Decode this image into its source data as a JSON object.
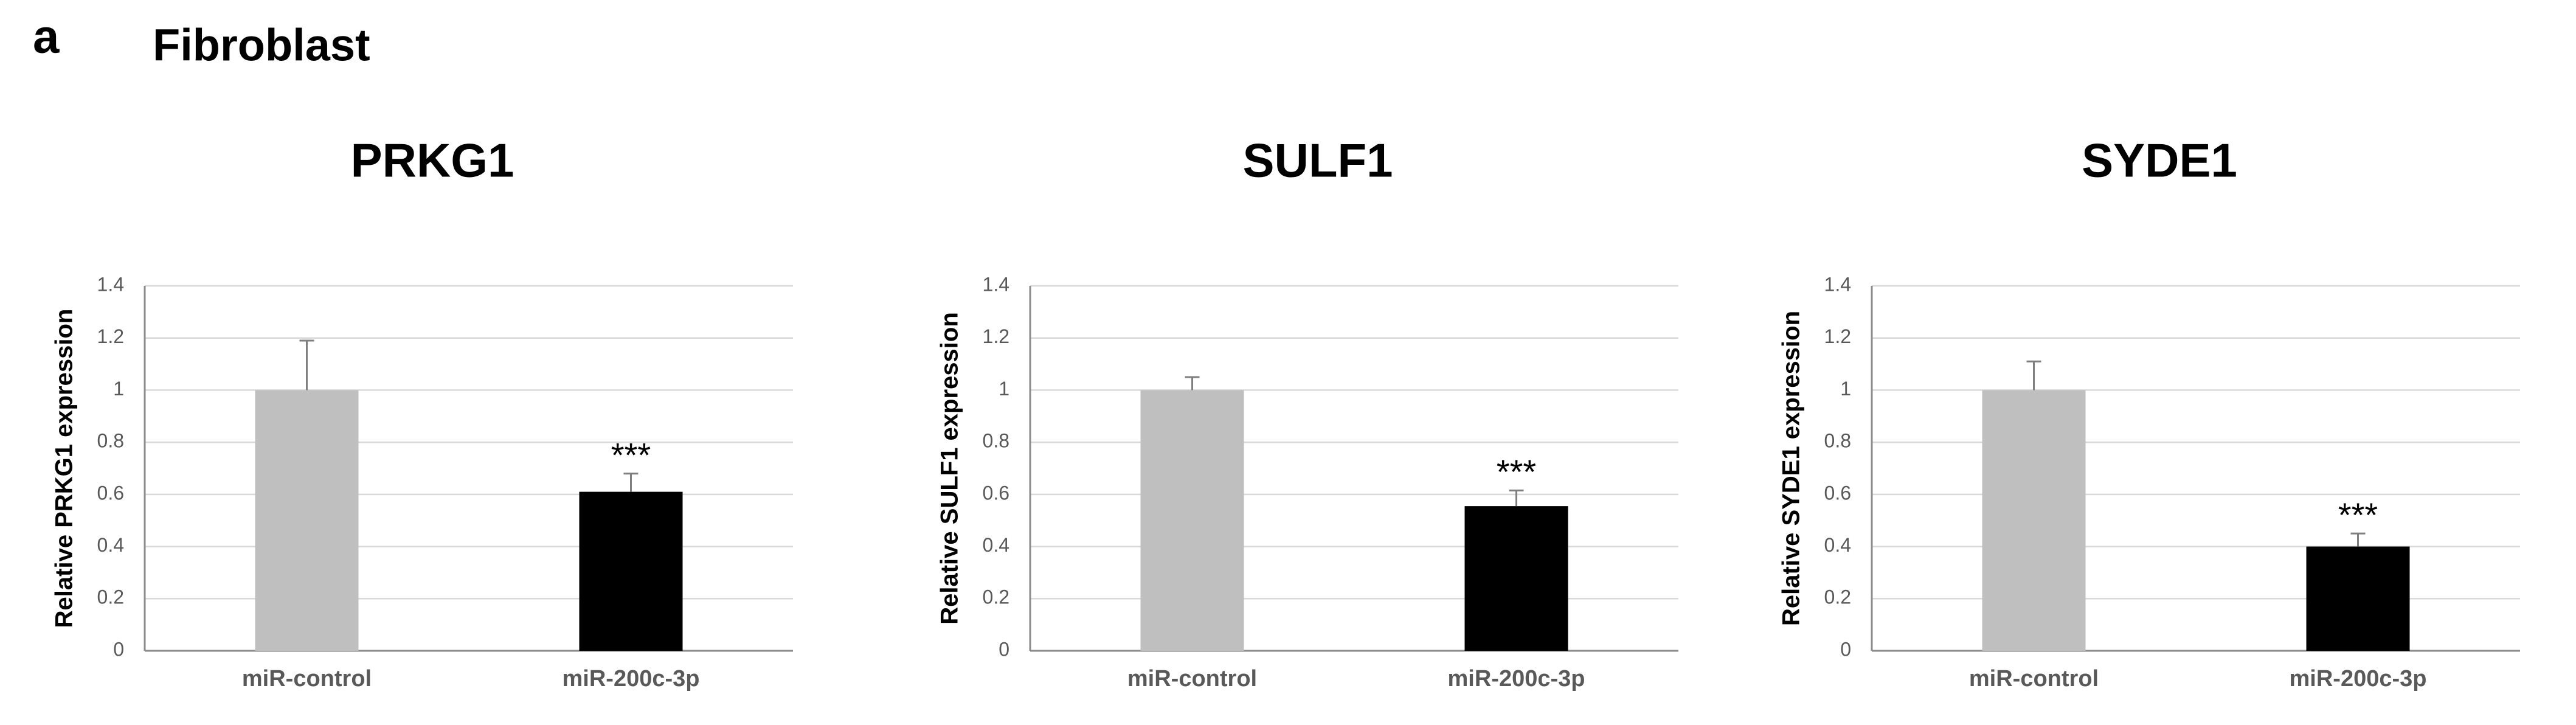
{
  "panel_label": "a",
  "figure_title": "Fibroblast",
  "chart_data": [
    {
      "type": "bar",
      "title": "PRKG1",
      "ylabel": "Relative PRKG1 expression",
      "categories": [
        "miR-control",
        "miR-200c-3p"
      ],
      "values": [
        1,
        0.61
      ],
      "errors": [
        0.19,
        0.07
      ],
      "colors": [
        "#bfbfbf",
        "#000000"
      ],
      "annotations": [
        null,
        "***"
      ],
      "ylim": [
        0,
        1.4
      ],
      "yticks": [
        0,
        0.2,
        0.4,
        0.6,
        0.8,
        1,
        1.2,
        1.4
      ],
      "grid": true
    },
    {
      "type": "bar",
      "title": "SULF1",
      "ylabel": "Relative SULF1 expression",
      "categories": [
        "miR-control",
        "miR-200c-3p"
      ],
      "values": [
        1,
        0.555
      ],
      "errors": [
        0.05,
        0.06
      ],
      "colors": [
        "#bfbfbf",
        "#000000"
      ],
      "annotations": [
        null,
        "***"
      ],
      "ylim": [
        0,
        1.4
      ],
      "yticks": [
        0,
        0.2,
        0.4,
        0.6,
        0.8,
        1,
        1.2,
        1.4
      ],
      "grid": true
    },
    {
      "type": "bar",
      "title": "SYDE1",
      "ylabel": "Relative SYDE1 expression",
      "categories": [
        "miR-control",
        "miR-200c-3p"
      ],
      "values": [
        1,
        0.4
      ],
      "errors": [
        0.11,
        0.05
      ],
      "colors": [
        "#bfbfbf",
        "#000000"
      ],
      "annotations": [
        null,
        "***"
      ],
      "ylim": [
        0,
        1.4
      ],
      "yticks": [
        0,
        0.2,
        0.4,
        0.6,
        0.8,
        1,
        1.2,
        1.4
      ],
      "grid": true
    }
  ]
}
